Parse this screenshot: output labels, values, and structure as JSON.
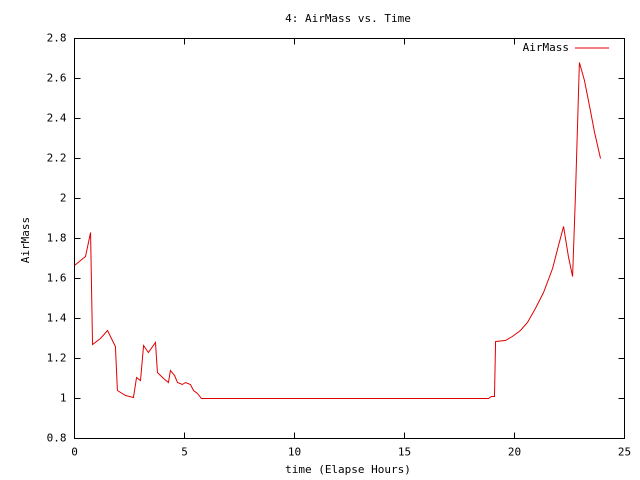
{
  "chart_data": {
    "type": "line",
    "title": "4: AirMass vs. Time",
    "x_label": "time (Elapse Hours)",
    "y_label": "AirMass",
    "x": [
      0,
      0.5,
      0.73,
      0.82,
      1.18,
      1.5,
      1.86,
      1.95,
      2.32,
      2.68,
      2.82,
      3.0,
      3.14,
      3.36,
      3.68,
      3.77,
      4.05,
      4.27,
      4.36,
      4.55,
      4.68,
      4.9,
      5.05,
      5.27,
      5.41,
      5.59,
      5.77,
      18.82,
      18.95,
      19.09,
      19.14,
      19.59,
      19.9,
      20.27,
      20.59,
      20.95,
      21.32,
      21.73,
      22.0,
      22.23,
      22.45,
      22.64,
      22.77,
      22.95,
      23.18,
      23.45,
      23.64,
      23.91
    ],
    "series": [
      {
        "name": "AirMass",
        "color": "#e00000",
        "values": [
          1.665,
          1.71,
          1.83,
          1.27,
          1.3,
          1.34,
          1.26,
          1.04,
          1.015,
          1.005,
          1.105,
          1.09,
          1.265,
          1.23,
          1.28,
          1.13,
          1.1,
          1.08,
          1.14,
          1.115,
          1.08,
          1.07,
          1.08,
          1.07,
          1.04,
          1.025,
          1.0,
          1.0,
          1.01,
          1.01,
          1.285,
          1.29,
          1.31,
          1.34,
          1.38,
          1.45,
          1.53,
          1.65,
          1.765,
          1.86,
          1.71,
          1.61,
          2.015,
          2.68,
          2.59,
          2.44,
          2.33,
          2.2
        ]
      }
    ],
    "xlim": [
      0,
      25
    ],
    "ylim": [
      0.8,
      2.8
    ],
    "xticks": [
      0,
      5,
      10,
      15,
      20,
      25
    ],
    "yticks": [
      0.8,
      1,
      1.2,
      1.4,
      1.6,
      1.8,
      2,
      2.2,
      2.4,
      2.6,
      2.8
    ],
    "grid": false,
    "legend": "top-right"
  }
}
